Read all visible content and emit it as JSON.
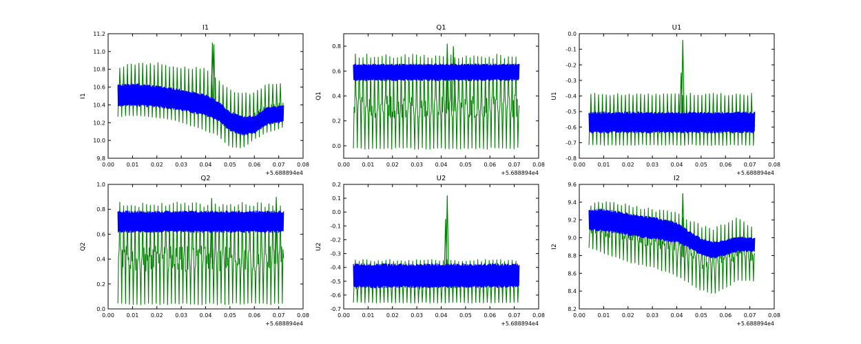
{
  "figure": {
    "background": "#ffffff"
  },
  "chart_data": [
    {
      "type": "line",
      "title": "I1",
      "xlabel": "",
      "ylabel": "I1",
      "x_offset_label": "+5.688894e4",
      "xlim": [
        0.0,
        0.08
      ],
      "ylim": [
        9.8,
        11.2
      ],
      "x_ticks": [
        "0.00",
        "0.01",
        "0.02",
        "0.03",
        "0.04",
        "0.05",
        "0.06",
        "0.07",
        "0.08"
      ],
      "y_ticks": [
        "9.8",
        "10.0",
        "10.2",
        "10.4",
        "10.6",
        "10.8",
        "11.0",
        "11.2"
      ],
      "x_range": [
        0.004,
        0.072
      ],
      "series": [
        {
          "color": "#0000ff",
          "x": [
            0.004,
            0.01,
            0.02,
            0.03,
            0.04,
            0.045,
            0.05,
            0.055,
            0.06,
            0.065,
            0.072
          ],
          "low": [
            10.38,
            10.38,
            10.37,
            10.33,
            10.27,
            10.22,
            10.1,
            10.05,
            10.07,
            10.17,
            10.2
          ],
          "high": [
            10.63,
            10.65,
            10.62,
            10.58,
            10.52,
            10.45,
            10.33,
            10.28,
            10.28,
            10.38,
            10.4
          ]
        },
        {
          "color": "#008000",
          "x": [
            0.004,
            0.01,
            0.02,
            0.03,
            0.04,
            0.045,
            0.05,
            0.055,
            0.06,
            0.065,
            0.072
          ],
          "low": [
            10.26,
            10.27,
            10.25,
            10.2,
            10.1,
            10.05,
            9.92,
            9.9,
            10.0,
            10.08,
            10.14
          ],
          "high": [
            10.84,
            10.88,
            10.88,
            10.84,
            10.82,
            10.7,
            10.58,
            10.55,
            10.55,
            10.66,
            10.66
          ],
          "spikes": [
            {
              "x": 0.0428,
              "y": 11.1
            },
            {
              "x": 0.0434,
              "y": 11.08
            }
          ]
        }
      ]
    },
    {
      "type": "line",
      "title": "Q1",
      "xlabel": "",
      "ylabel": "Q1",
      "x_offset_label": "+5.688894e4",
      "xlim": [
        0.0,
        0.08
      ],
      "ylim": [
        -0.1,
        0.9
      ],
      "x_ticks": [
        "0.00",
        "0.01",
        "0.02",
        "0.03",
        "0.04",
        "0.05",
        "0.06",
        "0.07",
        "0.08"
      ],
      "y_ticks": [
        "0.0",
        "0.2",
        "0.4",
        "0.6",
        "0.8"
      ],
      "x_range": [
        0.004,
        0.072
      ],
      "series": [
        {
          "color": "#0000ff",
          "x": [
            0.004,
            0.072
          ],
          "low": [
            0.52,
            0.52
          ],
          "high": [
            0.66,
            0.66
          ]
        },
        {
          "color": "#008000",
          "x": [
            0.004,
            0.072
          ],
          "low": [
            -0.03,
            -0.03
          ],
          "high": [
            0.74,
            0.74
          ],
          "spikes": [
            {
              "x": 0.0425,
              "y": 0.82
            },
            {
              "x": 0.045,
              "y": 0.8
            }
          ]
        }
      ]
    },
    {
      "type": "line",
      "title": "U1",
      "xlabel": "",
      "ylabel": "U1",
      "x_offset_label": "+5.688894e4",
      "xlim": [
        0.0,
        0.08
      ],
      "ylim": [
        -0.8,
        0.0
      ],
      "x_ticks": [
        "0.00",
        "0.01",
        "0.02",
        "0.03",
        "0.04",
        "0.05",
        "0.06",
        "0.07",
        "0.08"
      ],
      "y_ticks": [
        "-0.8",
        "-0.7",
        "-0.6",
        "-0.5",
        "-0.4",
        "-0.3",
        "-0.2",
        "-0.1",
        "0.0"
      ],
      "x_range": [
        0.004,
        0.072
      ],
      "series": [
        {
          "color": "#0000ff",
          "x": [
            0.004,
            0.072
          ],
          "low": [
            -0.64,
            -0.64
          ],
          "high": [
            -0.5,
            -0.5
          ]
        },
        {
          "color": "#008000",
          "x": [
            0.004,
            0.072
          ],
          "low": [
            -0.72,
            -0.72
          ],
          "high": [
            -0.38,
            -0.38
          ],
          "spikes": [
            {
              "x": 0.0425,
              "y": -0.04
            },
            {
              "x": 0.0418,
              "y": -0.25
            }
          ]
        }
      ]
    },
    {
      "type": "line",
      "title": "Q2",
      "xlabel": "",
      "ylabel": "Q2",
      "x_offset_label": "+5.688894e4",
      "xlim": [
        0.0,
        0.08
      ],
      "ylim": [
        0.0,
        1.0
      ],
      "x_ticks": [
        "0.00",
        "0.01",
        "0.02",
        "0.03",
        "0.04",
        "0.05",
        "0.06",
        "0.07",
        "0.08"
      ],
      "y_ticks": [
        "0.0",
        "0.2",
        "0.4",
        "0.6",
        "0.8",
        "1.0"
      ],
      "x_range": [
        0.004,
        0.072
      ],
      "series": [
        {
          "color": "#0000ff",
          "x": [
            0.004,
            0.072
          ],
          "low": [
            0.61,
            0.61
          ],
          "high": [
            0.79,
            0.79
          ]
        },
        {
          "color": "#008000",
          "x": [
            0.004,
            0.072
          ],
          "low": [
            0.03,
            0.03
          ],
          "high": [
            0.86,
            0.86
          ],
          "spikes": [
            {
              "x": 0.0425,
              "y": 0.89
            },
            {
              "x": 0.069,
              "y": 0.9
            }
          ]
        }
      ]
    },
    {
      "type": "line",
      "title": "U2",
      "xlabel": "",
      "ylabel": "U2",
      "x_offset_label": "+5.688894e4",
      "xlim": [
        0.0,
        0.08
      ],
      "ylim": [
        -0.7,
        0.2
      ],
      "x_ticks": [
        "0.00",
        "0.01",
        "0.02",
        "0.03",
        "0.04",
        "0.05",
        "0.06",
        "0.07",
        "0.08"
      ],
      "y_ticks": [
        "-0.7",
        "-0.6",
        "-0.5",
        "-0.4",
        "-0.3",
        "-0.2",
        "-0.1",
        "0.0",
        "0.1",
        "0.2"
      ],
      "x_range": [
        0.004,
        0.072
      ],
      "series": [
        {
          "color": "#0000ff",
          "x": [
            0.004,
            0.072
          ],
          "low": [
            -0.55,
            -0.55
          ],
          "high": [
            -0.37,
            -0.37
          ]
        },
        {
          "color": "#008000",
          "x": [
            0.004,
            0.072
          ],
          "low": [
            -0.66,
            -0.66
          ],
          "high": [
            -0.34,
            -0.34
          ],
          "spikes": [
            {
              "x": 0.0425,
              "y": 0.12
            },
            {
              "x": 0.0418,
              "y": -0.05
            }
          ]
        }
      ]
    },
    {
      "type": "line",
      "title": "I2",
      "xlabel": "",
      "ylabel": "I2",
      "x_offset_label": "+5.688894e4",
      "xlim": [
        0.0,
        0.08
      ],
      "ylim": [
        8.2,
        9.6
      ],
      "x_ticks": [
        "0.00",
        "0.01",
        "0.02",
        "0.03",
        "0.04",
        "0.05",
        "0.06",
        "0.07",
        "0.08"
      ],
      "y_ticks": [
        "8.2",
        "8.4",
        "8.6",
        "8.8",
        "9.0",
        "9.2",
        "9.4",
        "9.6"
      ],
      "x_range": [
        0.004,
        0.072
      ],
      "series": [
        {
          "color": "#0000ff",
          "x": [
            0.004,
            0.01,
            0.02,
            0.03,
            0.04,
            0.045,
            0.05,
            0.055,
            0.06,
            0.065,
            0.072
          ],
          "low": [
            9.08,
            9.07,
            9.02,
            8.98,
            8.94,
            8.88,
            8.8,
            8.76,
            8.8,
            8.84,
            8.84
          ],
          "high": [
            9.32,
            9.33,
            9.28,
            9.24,
            9.18,
            9.08,
            9.0,
            8.96,
            8.98,
            9.02,
            9.0
          ]
        },
        {
          "color": "#008000",
          "x": [
            0.004,
            0.01,
            0.02,
            0.03,
            0.04,
            0.045,
            0.05,
            0.055,
            0.06,
            0.065,
            0.072
          ],
          "low": [
            8.88,
            8.82,
            8.72,
            8.66,
            8.56,
            8.48,
            8.4,
            8.36,
            8.42,
            8.52,
            8.5
          ],
          "high": [
            9.38,
            9.42,
            9.38,
            9.33,
            9.3,
            9.22,
            9.15,
            9.12,
            9.18,
            9.25,
            9.12
          ],
          "spikes": [
            {
              "x": 0.0425,
              "y": 9.5
            }
          ]
        }
      ]
    }
  ]
}
